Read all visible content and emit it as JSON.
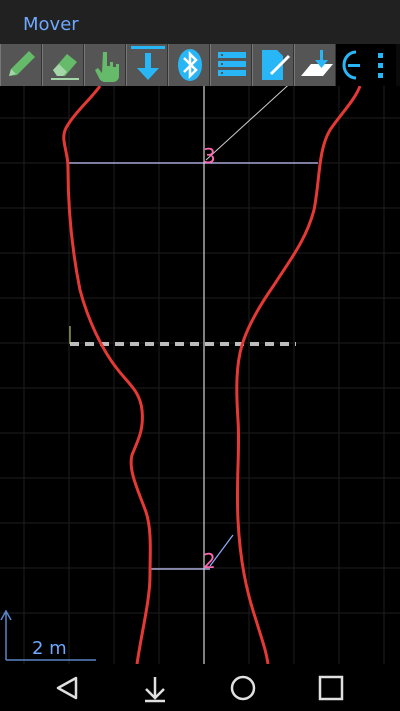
{
  "app": {
    "title": "Mover"
  },
  "toolbar": {
    "tools": [
      {
        "name": "pencil-icon"
      },
      {
        "name": "eraser-icon"
      },
      {
        "name": "hand-pointer-icon"
      },
      {
        "name": "download-arrow-icon"
      },
      {
        "name": "bluetooth-icon"
      },
      {
        "name": "list-icon"
      },
      {
        "name": "edit-document-icon"
      },
      {
        "name": "import-plane-icon"
      },
      {
        "name": "zoom-out-icon"
      },
      {
        "name": "overflow-menu-icon"
      }
    ]
  },
  "canvas": {
    "point_labels": [
      "3",
      "2"
    ],
    "scale_text": "2 m"
  },
  "colors": {
    "accent": "#6ea8ff",
    "toolbar_icon": "#29b6f6",
    "tool_green": "#66bb6a",
    "contour": "#e53935",
    "point_label": "#ff69b4"
  },
  "navbar": {
    "buttons": [
      "back-icon",
      "down-arrow-icon",
      "home-circle-icon",
      "recents-square-icon"
    ]
  }
}
